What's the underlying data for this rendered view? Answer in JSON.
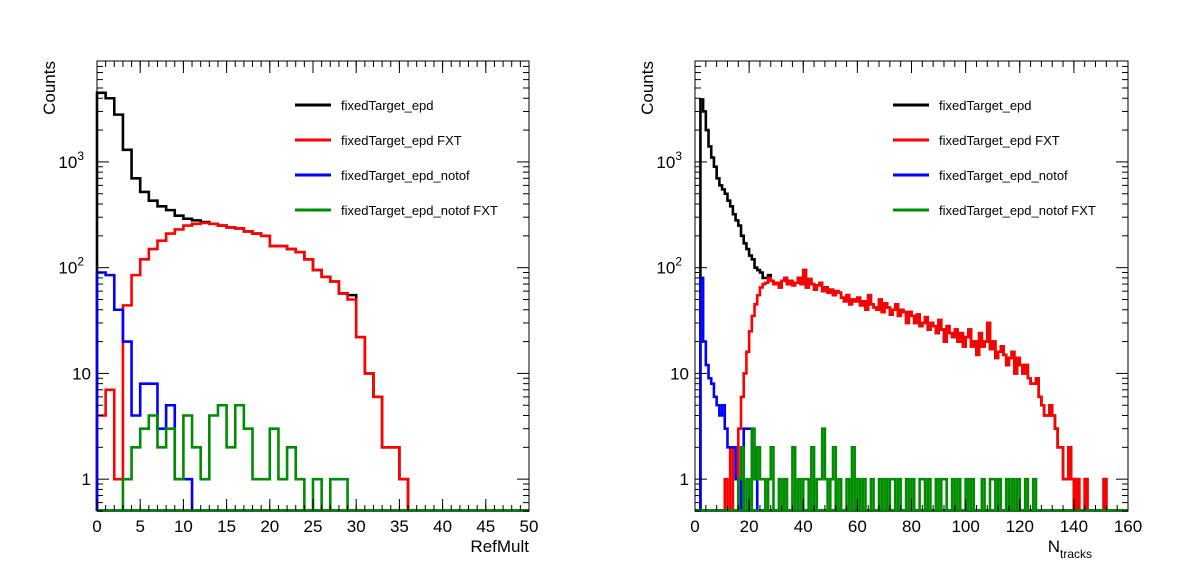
{
  "chart_data": [
    {
      "type": "step-histogram",
      "title": "",
      "xlabel": "RefMult",
      "ylabel": "Counts",
      "xlim": [
        0,
        50
      ],
      "ylim": [
        0.5,
        9000
      ],
      "yscale": "log",
      "x_ticks": [
        0,
        5,
        10,
        15,
        20,
        25,
        30,
        35,
        40,
        45,
        50
      ],
      "y_ticks": [
        {
          "value": 1,
          "label": "1"
        },
        {
          "value": 10,
          "label": "10"
        },
        {
          "value": 100,
          "label": "10",
          "exp": "2"
        },
        {
          "value": 1000,
          "label": "10",
          "exp": "3"
        }
      ],
      "bin_width": 1,
      "legend_position": "top-right",
      "series": [
        {
          "name": "fixedTarget_epd",
          "color": "#000000",
          "values": [
            4500,
            4000,
            2800,
            1300,
            700,
            520,
            430,
            380,
            350,
            310,
            290,
            280,
            270,
            260,
            250,
            240,
            235,
            220,
            210,
            200,
            160,
            160,
            150,
            140,
            120,
            95,
            82,
            74,
            57,
            55,
            22,
            10,
            6,
            2,
            2,
            1,
            0,
            0,
            0,
            0,
            0,
            0,
            0,
            0,
            0,
            0,
            0,
            0,
            0,
            0
          ]
        },
        {
          "name": "fixedTarget_epd FXT",
          "color": "#ff0000",
          "values": [
            4,
            7,
            1,
            44,
            85,
            120,
            150,
            180,
            210,
            230,
            250,
            260,
            265,
            260,
            250,
            240,
            235,
            220,
            210,
            200,
            160,
            160,
            150,
            140,
            120,
            95,
            82,
            74,
            57,
            50,
            22,
            10,
            6,
            2,
            2,
            1,
            0,
            0,
            0,
            0,
            0,
            0,
            0,
            0,
            0,
            0,
            0,
            0,
            0,
            0
          ]
        },
        {
          "name": "fixedTarget_epd_notof",
          "color": "#0000ff",
          "values": [
            90,
            85,
            40,
            20,
            4,
            8,
            8,
            3,
            5,
            1,
            1,
            0,
            0,
            0,
            0,
            0,
            0,
            0,
            0,
            0,
            0,
            0,
            0,
            0,
            0,
            0,
            0,
            0,
            0,
            0,
            0,
            0,
            0,
            0,
            0,
            0,
            0,
            0,
            0,
            0,
            0,
            0,
            0,
            0,
            0,
            0,
            0,
            0,
            0,
            0
          ]
        },
        {
          "name": "fixedTarget_epd_notof FXT",
          "color": "#008c00",
          "values": [
            0,
            0,
            0,
            1,
            2,
            3,
            4,
            2,
            3,
            1,
            4,
            2,
            1,
            4,
            5,
            2,
            5,
            3,
            1,
            1,
            3,
            1,
            2,
            1,
            0,
            1,
            0,
            1,
            1,
            0,
            0,
            0,
            0,
            0,
            0,
            0,
            0,
            0,
            0,
            0,
            0,
            0,
            0,
            0,
            0,
            0,
            0,
            0,
            0,
            0
          ]
        }
      ]
    },
    {
      "type": "step-histogram",
      "title": "",
      "xlabel": "N",
      "xlabel_sub": "tracks",
      "ylabel": "Counts",
      "xlim": [
        0,
        160
      ],
      "ylim": [
        0.5,
        9000
      ],
      "yscale": "log",
      "x_ticks": [
        0,
        20,
        40,
        60,
        80,
        100,
        120,
        140,
        160
      ],
      "y_ticks": [
        {
          "value": 1,
          "label": "1"
        },
        {
          "value": 10,
          "label": "10"
        },
        {
          "value": 100,
          "label": "10",
          "exp": "2"
        },
        {
          "value": 1000,
          "label": "10",
          "exp": "3"
        }
      ],
      "bin_width": 1,
      "legend_position": "top-right",
      "series": [
        {
          "name": "fixedTarget_epd",
          "color": "#000000",
          "values": [
            0,
            0,
            3900,
            3000,
            2000,
            1400,
            1100,
            900,
            700,
            600,
            550,
            500,
            430,
            380,
            320,
            280,
            250,
            200,
            170,
            150,
            130,
            120,
            100,
            95,
            90,
            80,
            80,
            85,
            75,
            70,
            72,
            65,
            75,
            80,
            70,
            75,
            68,
            72,
            80,
            70,
            95,
            65,
            78,
            70,
            62,
            68,
            72,
            60,
            65,
            58,
            62,
            55,
            60,
            58,
            52,
            48,
            55,
            45,
            50,
            48,
            52,
            44,
            48,
            40,
            55,
            45,
            42,
            40,
            50,
            38,
            46,
            42,
            36,
            40,
            45,
            35,
            40,
            38,
            30,
            38,
            35,
            30,
            36,
            28,
            30,
            34,
            26,
            30,
            28,
            24,
            32,
            26,
            20,
            28,
            24,
            22,
            26,
            20,
            24,
            18,
            22,
            26,
            18,
            20,
            15,
            24,
            18,
            20,
            30,
            17,
            20,
            14,
            16,
            18,
            15,
            12,
            14,
            16,
            10,
            14,
            12,
            10,
            12,
            9,
            8,
            8,
            9,
            6,
            5,
            4,
            4,
            5,
            4,
            3,
            2,
            2,
            1,
            1,
            2,
            1,
            0,
            1,
            0,
            0,
            1,
            0,
            0,
            0,
            0,
            0,
            0,
            1,
            0,
            0,
            0,
            0,
            0,
            0,
            0,
            0
          ]
        },
        {
          "name": "fixedTarget_epd FXT",
          "color": "#ff0000",
          "values": [
            0,
            0,
            0,
            0,
            0,
            0,
            0,
            0,
            0,
            0,
            0,
            1,
            0,
            2,
            0,
            0,
            3,
            6,
            10,
            16,
            25,
            35,
            45,
            55,
            65,
            70,
            72,
            80,
            75,
            70,
            72,
            65,
            75,
            80,
            70,
            75,
            68,
            72,
            80,
            70,
            95,
            65,
            78,
            70,
            62,
            68,
            72,
            60,
            65,
            58,
            62,
            55,
            60,
            58,
            52,
            48,
            55,
            45,
            50,
            48,
            52,
            44,
            48,
            40,
            55,
            45,
            42,
            40,
            50,
            38,
            46,
            42,
            36,
            40,
            45,
            35,
            40,
            38,
            30,
            38,
            35,
            30,
            36,
            28,
            30,
            34,
            26,
            30,
            28,
            24,
            32,
            26,
            20,
            28,
            24,
            22,
            26,
            20,
            24,
            18,
            22,
            26,
            18,
            20,
            15,
            24,
            18,
            20,
            30,
            17,
            20,
            14,
            16,
            18,
            15,
            12,
            14,
            16,
            10,
            14,
            12,
            10,
            12,
            9,
            8,
            8,
            9,
            6,
            5,
            4,
            4,
            5,
            4,
            3,
            2,
            2,
            1,
            1,
            2,
            1,
            0,
            1,
            0,
            0,
            1,
            0,
            0,
            0,
            0,
            0,
            0,
            1,
            0,
            0,
            0,
            0,
            0,
            0,
            0,
            0
          ]
        },
        {
          "name": "fixedTarget_epd_notof",
          "color": "#0000ff",
          "values": [
            0,
            0,
            80,
            20,
            12,
            9,
            8,
            6,
            5,
            4,
            5,
            3,
            2,
            2,
            2,
            1,
            1,
            0,
            3,
            3,
            3,
            2,
            1,
            0,
            0,
            0,
            0,
            0,
            0,
            0,
            0,
            0,
            0,
            0,
            0,
            0,
            0,
            0,
            0,
            0,
            0,
            0,
            0,
            0,
            0,
            0,
            0,
            0,
            0,
            0,
            0,
            0,
            0,
            0,
            0,
            0,
            0,
            0,
            0,
            0,
            0,
            0,
            0,
            0,
            0,
            0,
            0,
            0,
            0,
            0,
            0,
            0,
            0,
            0,
            0,
            0,
            0,
            0,
            0,
            0,
            0,
            0,
            0,
            0,
            0,
            0,
            0,
            0,
            0,
            0,
            0,
            0,
            0,
            0,
            0,
            0,
            0,
            0,
            0,
            0,
            0,
            0,
            0,
            0,
            0,
            0,
            0,
            0,
            0,
            0,
            0,
            0,
            0,
            0,
            0,
            0,
            0,
            0,
            0,
            0,
            0,
            0,
            0,
            0,
            0,
            0,
            0,
            0,
            0,
            0,
            0,
            0,
            0,
            0,
            0,
            0,
            0,
            0,
            0,
            0,
            0,
            0,
            0,
            0,
            0,
            0,
            0,
            0,
            0,
            0,
            0,
            0,
            0,
            0,
            0,
            0,
            0,
            0,
            0,
            0
          ]
        },
        {
          "name": "fixedTarget_epd_notof FXT",
          "color": "#008c00",
          "values": [
            0,
            0,
            0,
            0,
            0,
            0,
            0,
            0,
            0,
            0,
            0,
            0,
            0,
            0,
            0,
            0,
            1,
            2,
            0,
            1,
            0,
            3,
            1,
            2,
            1,
            1,
            0,
            1,
            2,
            0,
            0,
            1,
            0,
            1,
            0,
            0,
            2,
            0,
            1,
            0,
            1,
            1,
            0,
            2,
            0,
            1,
            1,
            3,
            1,
            0,
            1,
            2,
            0,
            1,
            0,
            0,
            1,
            0,
            2,
            0,
            1,
            0,
            1,
            0,
            0,
            1,
            0,
            0,
            1,
            0,
            1,
            0,
            1,
            1,
            0,
            1,
            0,
            0,
            1,
            0,
            1,
            0,
            0,
            1,
            1,
            0,
            1,
            0,
            0,
            1,
            0,
            1,
            1,
            0,
            0,
            1,
            0,
            1,
            0,
            0,
            1,
            0,
            1,
            0,
            0,
            0,
            1,
            0,
            0,
            1,
            1,
            0,
            1,
            0,
            0,
            1,
            0,
            1,
            0,
            1,
            0,
            0,
            1,
            0,
            0,
            1,
            0,
            0,
            0,
            0,
            0,
            0,
            0,
            0,
            0,
            0,
            0,
            0,
            0,
            0,
            0,
            0,
            0,
            0,
            0,
            0,
            0,
            0,
            0,
            0,
            0,
            0,
            0,
            0,
            0,
            0,
            0,
            0,
            0,
            0
          ]
        }
      ]
    }
  ]
}
